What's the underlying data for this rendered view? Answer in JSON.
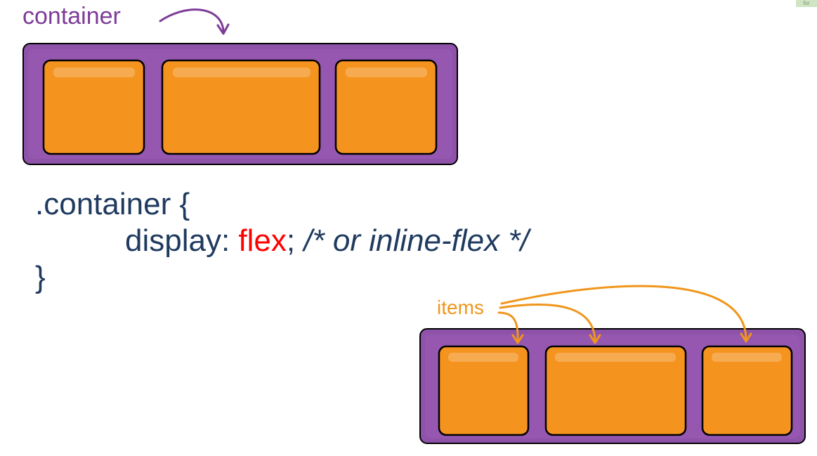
{
  "labels": {
    "container": "container",
    "items": "items"
  },
  "code": {
    "line1": ".container {",
    "property": "display: ",
    "value": "flex",
    "semicolon": "; ",
    "comment": "/* or inline-flex */",
    "line3": "}"
  },
  "corner_tag": "for",
  "colors": {
    "container_purple": "#8e52a8",
    "item_orange": "#f5931f",
    "label_container": "#7d3c98",
    "label_items": "#f0961c",
    "code_text": "#1f3a5f",
    "code_keyword": "#ff0000"
  },
  "diagrams": [
    {
      "name": "container-diagram",
      "items": 3
    },
    {
      "name": "items-diagram",
      "items": 3
    }
  ]
}
